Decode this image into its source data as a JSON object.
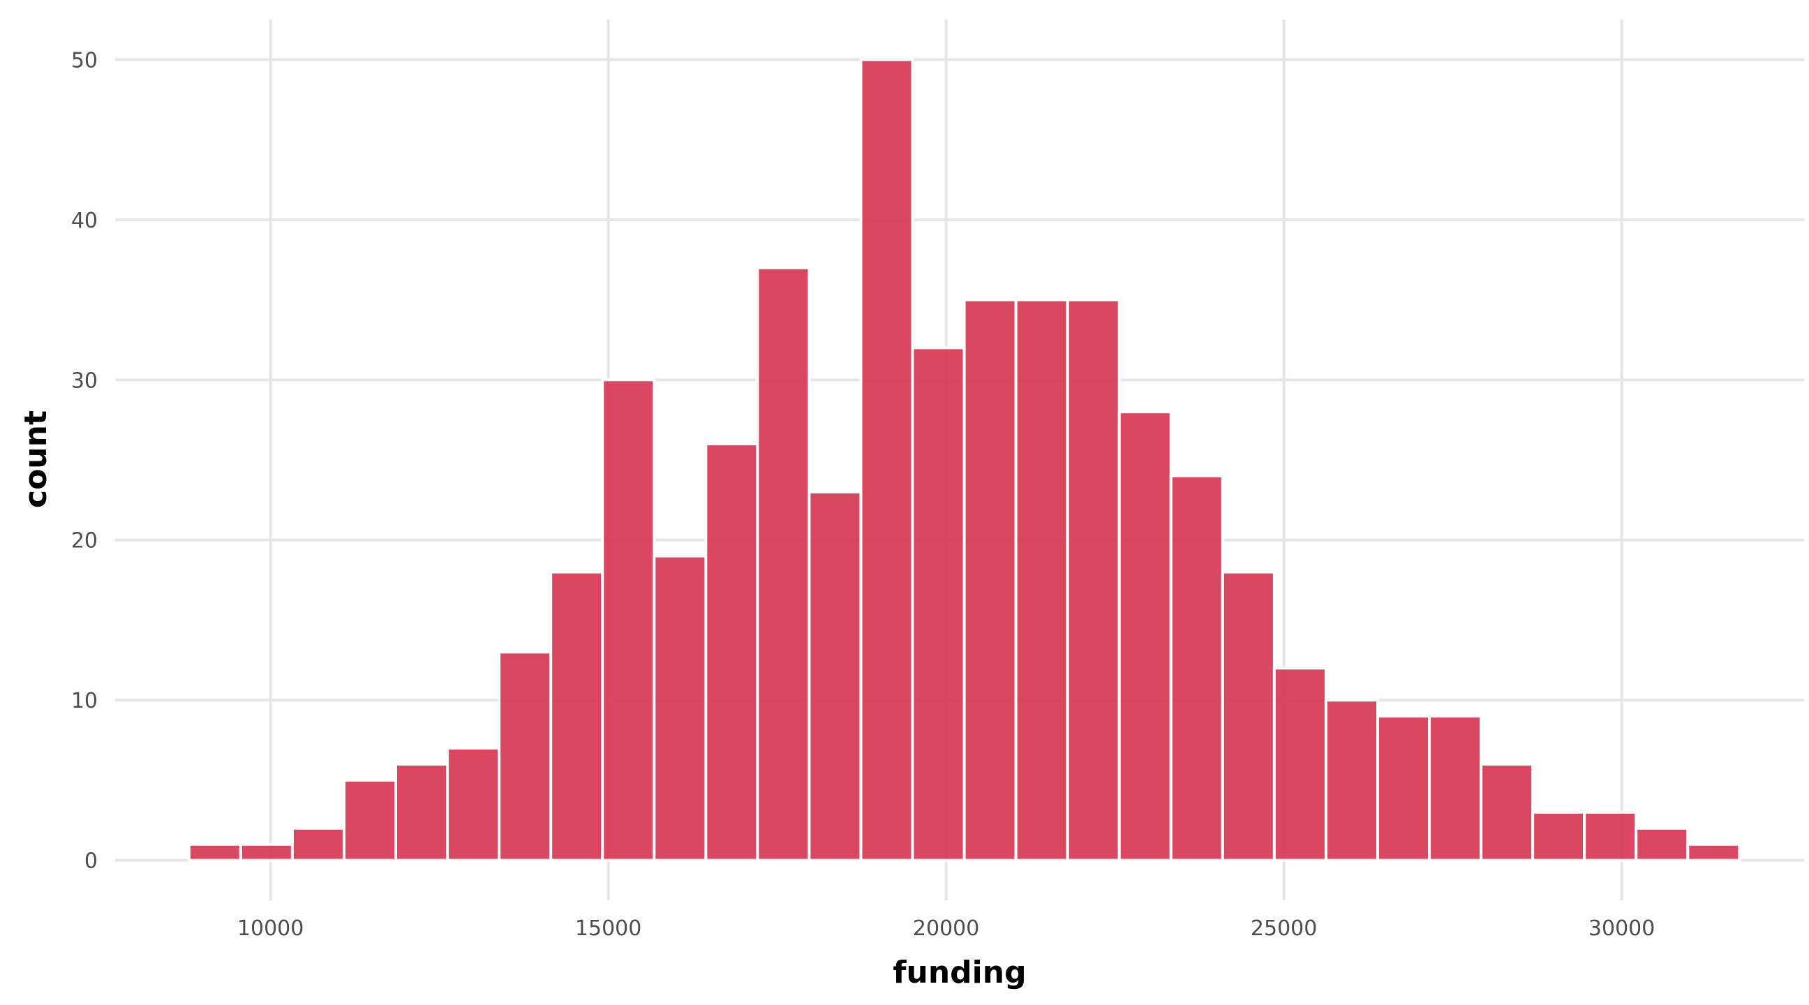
{
  "chart_data": {
    "type": "bar",
    "title": "",
    "xlabel": "funding",
    "ylabel": "count",
    "bar_color": "#d7334f",
    "grid": true,
    "legend": "none",
    "xlim": [
      7700,
      32700
    ],
    "ylim": [
      -2.5,
      52.5
    ],
    "x_ticks": [
      10000,
      15000,
      20000,
      25000,
      30000
    ],
    "x_tick_labels": [
      "10000",
      "15000",
      "20000",
      "25000",
      "30000"
    ],
    "y_ticks": [
      0,
      10,
      20,
      30,
      40,
      50
    ],
    "y_tick_labels": [
      "0",
      "10",
      "20",
      "30",
      "40",
      "50"
    ],
    "bin_width": 765,
    "bin_starts": [
      8793,
      9558,
      10323,
      11088,
      11853,
      12618,
      13383,
      14148,
      14913,
      15678,
      16443,
      17208,
      17973,
      18738,
      19503,
      20268,
      21033,
      21798,
      22563,
      23328,
      24093,
      24858,
      25623,
      26388,
      27153,
      27918,
      28683,
      29448,
      30213,
      30978
    ],
    "values": [
      1,
      1,
      2,
      5,
      6,
      7,
      13,
      18,
      30,
      19,
      26,
      37,
      23,
      50,
      32,
      35,
      35,
      35,
      28,
      24,
      18,
      12,
      10,
      9,
      9,
      6,
      3,
      3,
      2,
      1
    ]
  }
}
